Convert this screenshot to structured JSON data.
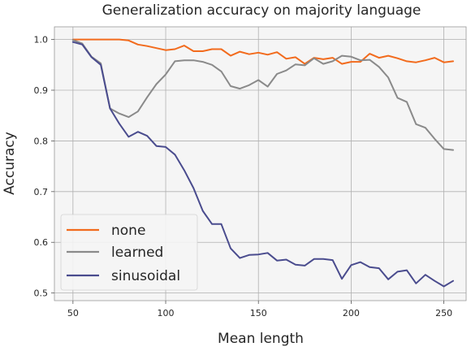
{
  "chart_data": {
    "type": "line",
    "title": "Generalization accuracy on majority language",
    "xlabel": "Mean length",
    "ylabel": "Accuracy",
    "xlim": [
      40,
      262
    ],
    "ylim": [
      0.485,
      1.025
    ],
    "xticks": [
      50,
      100,
      150,
      200,
      250
    ],
    "yticks": [
      0.5,
      0.6,
      0.7,
      0.8,
      0.9,
      1.0
    ],
    "xtick_labels": [
      "50",
      "100",
      "150",
      "200",
      "250"
    ],
    "ytick_labels": [
      "0.5",
      "0.6",
      "0.7",
      "0.8",
      "0.9",
      "1.0"
    ],
    "grid": true,
    "legend_position": "lower-left",
    "x": [
      50,
      55,
      60,
      65,
      70,
      75,
      80,
      85,
      90,
      95,
      100,
      105,
      110,
      115,
      120,
      125,
      130,
      135,
      140,
      145,
      150,
      155,
      160,
      165,
      170,
      175,
      180,
      185,
      190,
      195,
      200,
      205,
      210,
      215,
      220,
      225,
      230,
      235,
      240,
      245,
      250,
      255
    ],
    "series": [
      {
        "name": "none",
        "color": "#f26b1d",
        "values": [
          1.0,
          1.0,
          1.0,
          1.0,
          1.0,
          1.0,
          0.998,
          0.99,
          0.987,
          0.983,
          0.979,
          0.981,
          0.988,
          0.977,
          0.977,
          0.981,
          0.981,
          0.968,
          0.976,
          0.971,
          0.974,
          0.97,
          0.975,
          0.962,
          0.965,
          0.952,
          0.964,
          0.961,
          0.964,
          0.952,
          0.956,
          0.956,
          0.972,
          0.964,
          0.968,
          0.963,
          0.957,
          0.955,
          0.959,
          0.964,
          0.955,
          0.957
        ]
      },
      {
        "name": "learned",
        "color": "#8a8a8a",
        "values": [
          0.999,
          0.992,
          0.966,
          0.953,
          0.864,
          0.854,
          0.847,
          0.858,
          0.886,
          0.912,
          0.931,
          0.957,
          0.959,
          0.959,
          0.956,
          0.95,
          0.937,
          0.908,
          0.903,
          0.91,
          0.92,
          0.907,
          0.932,
          0.939,
          0.951,
          0.949,
          0.963,
          0.952,
          0.957,
          0.968,
          0.966,
          0.959,
          0.96,
          0.946,
          0.925,
          0.885,
          0.877,
          0.833,
          0.826,
          0.804,
          0.784,
          0.782
        ]
      },
      {
        "name": "sinusoidal",
        "color": "#4a4c8e",
        "values": [
          0.995,
          0.99,
          0.965,
          0.95,
          0.864,
          0.834,
          0.808,
          0.818,
          0.81,
          0.79,
          0.788,
          0.773,
          0.742,
          0.707,
          0.662,
          0.636,
          0.636,
          0.588,
          0.569,
          0.575,
          0.576,
          0.579,
          0.564,
          0.566,
          0.556,
          0.554,
          0.567,
          0.567,
          0.565,
          0.528,
          0.555,
          0.561,
          0.551,
          0.549,
          0.527,
          0.542,
          0.545,
          0.519,
          0.536,
          0.524,
          0.513,
          0.524
        ]
      }
    ]
  }
}
